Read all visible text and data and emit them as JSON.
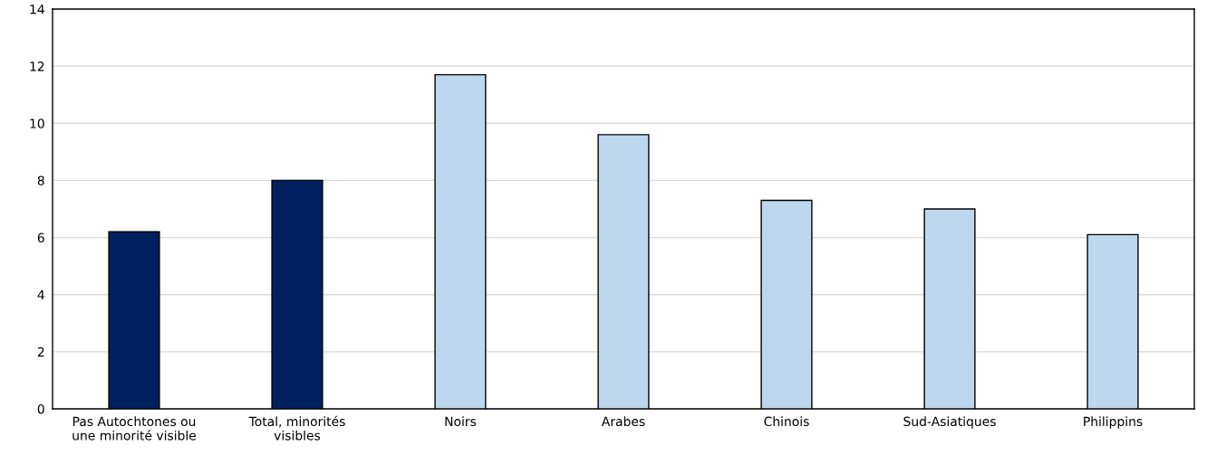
{
  "chart_data": {
    "type": "bar",
    "categories": [
      "Pas Autochtones ou\nune minorité visible",
      "Total, minorités\nvisibles",
      "Noirs",
      "Arabes",
      "Chinois",
      "Sud-Asiatiques",
      "Philippins"
    ],
    "values": [
      6.2,
      8.0,
      11.7,
      9.6,
      7.3,
      7.0,
      6.1
    ],
    "colors": [
      "#002060",
      "#002060",
      "#bdd7ee",
      "#bdd7ee",
      "#bdd7ee",
      "#bdd7ee",
      "#bdd7ee"
    ],
    "ylim": [
      0,
      14
    ],
    "yticks": [
      0,
      2,
      4,
      6,
      8,
      10,
      12,
      14
    ],
    "grid": "y"
  }
}
